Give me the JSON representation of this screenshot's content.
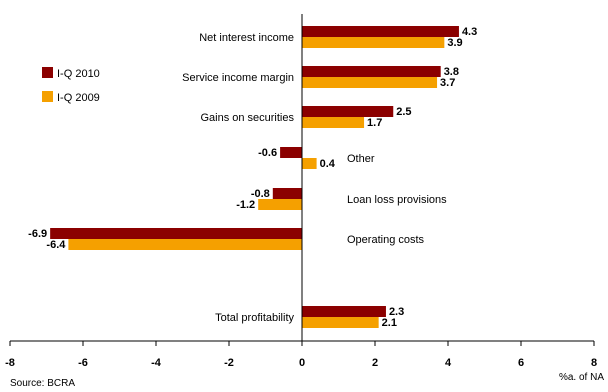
{
  "chart_data": {
    "type": "bar",
    "orientation": "horizontal",
    "categories": [
      "Net interest income",
      "Service income margin",
      "Gains on securities",
      "Other",
      "Loan loss provisions",
      "Operating costs",
      "Total profitability"
    ],
    "series": [
      {
        "name": "I-Q 2010",
        "values": [
          4.3,
          3.8,
          2.5,
          -0.6,
          -0.8,
          -6.9,
          2.3
        ],
        "labels": [
          "4.3",
          "3.8",
          "2.5",
          "-0.6",
          "-0.8",
          "-6.9",
          "2.3"
        ],
        "color": "#8B0000"
      },
      {
        "name": "I-Q 2009",
        "values": [
          3.9,
          3.7,
          1.7,
          0.4,
          -1.2,
          -6.4,
          2.1
        ],
        "labels": [
          "3.9",
          "3.7",
          "1.7",
          "0.4",
          "-1.2",
          "-6.4",
          "2.1"
        ],
        "color": "#F5A000"
      }
    ],
    "xlim": [
      -8,
      8
    ],
    "xticks": [
      "-8",
      "-6",
      "-4",
      "-2",
      "0",
      "2",
      "4",
      "6",
      "8"
    ],
    "xlabel": "%a. of NA",
    "legend_position": "top-left",
    "grid": false
  },
  "source": "Source: BCRA"
}
